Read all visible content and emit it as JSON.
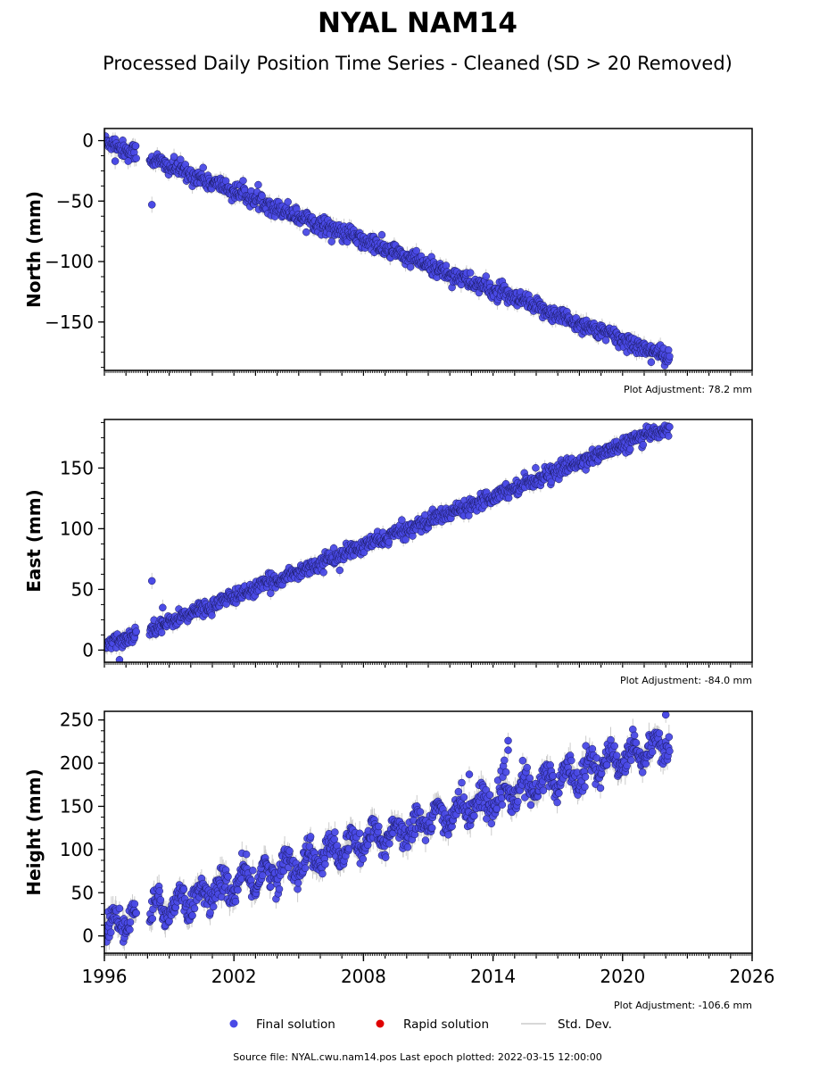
{
  "figure": {
    "title": "NYAL NAM14",
    "subtitle": "Processed Daily Position Time Series - Cleaned (SD > 20 Removed)",
    "footer": "Source file: NYAL.cwu.nam14.pos  Last epoch plotted: 2022-03-15 12:00:00"
  },
  "legend": {
    "items": [
      {
        "label": "Final solution",
        "color": "#4a4ae6",
        "marker": "circle"
      },
      {
        "label": "Rapid solution",
        "color": "#e00000",
        "marker": "circle"
      },
      {
        "label": "Std. Dev.",
        "color": "#cccccc",
        "marker": "line"
      }
    ]
  },
  "chart_data": [
    {
      "type": "scatter",
      "ylabel": "North (mm)",
      "xlim": [
        1996,
        2026
      ],
      "ylim": [
        -190,
        10
      ],
      "yticks": [
        0,
        -50,
        -100,
        -150
      ],
      "ytick_labels": [
        "0",
        "−50",
        "−100",
        "−150"
      ],
      "note": "Plot Adjustment: 78.2 mm",
      "x_tick_labels_shown": false,
      "outliers": [
        {
          "x": 1998.2,
          "y": -53
        },
        {
          "x": 1996.5,
          "y": -17
        },
        {
          "x": 1997.1,
          "y": -17
        }
      ],
      "trend": {
        "x": [
          1996.0,
          1998.1,
          2022.2
        ],
        "y": [
          0,
          -15,
          -180
        ]
      },
      "gap": [
        1997.5,
        1998.1
      ],
      "scatter_sd": 3.5,
      "season_amp": 1
    },
    {
      "type": "scatter",
      "ylabel": "East (mm)",
      "xlim": [
        1996,
        2026
      ],
      "ylim": [
        -10,
        190
      ],
      "yticks": [
        0,
        50,
        100,
        150
      ],
      "ytick_labels": [
        "0",
        "50",
        "100",
        "150"
      ],
      "note": "Plot Adjustment: -84.0 mm",
      "x_tick_labels_shown": false,
      "outliers": [
        {
          "x": 1998.2,
          "y": 57
        },
        {
          "x": 1998.7,
          "y": 35
        },
        {
          "x": 1996.7,
          "y": -8
        }
      ],
      "trend": {
        "x": [
          1996.0,
          1997.5,
          1998.1,
          2022.2
        ],
        "y": [
          3,
          13,
          17,
          184
        ]
      },
      "gap": [
        1997.5,
        1998.1
      ],
      "scatter_sd": 3,
      "season_amp": 1
    },
    {
      "type": "scatter",
      "ylabel": "Height (mm)",
      "xlim": [
        1996,
        2026
      ],
      "ylim": [
        -20,
        260
      ],
      "yticks": [
        0,
        50,
        100,
        150,
        200,
        250
      ],
      "ytick_labels": [
        "0",
        "50",
        "100",
        "150",
        "200",
        "250"
      ],
      "note": "Plot Adjustment: -106.6 mm",
      "x_tick_labels_shown": true,
      "xticks": [
        1996,
        2002,
        2008,
        2014,
        2020,
        2026
      ],
      "xtick_labels": [
        "1996",
        "2002",
        "2008",
        "2014",
        "2020",
        "2026"
      ],
      "outliers": [
        {
          "x": 2014.7,
          "y": 226
        },
        {
          "x": 2014.7,
          "y": 215
        },
        {
          "x": 2012.9,
          "y": 187
        },
        {
          "x": 2022.0,
          "y": 256
        }
      ],
      "trend": {
        "x": [
          1996.0,
          2022.2
        ],
        "y": [
          10,
          225
        ]
      },
      "gap": [
        1997.5,
        1998.1
      ],
      "scatter_sd": 8,
      "season_amp": 12
    }
  ]
}
